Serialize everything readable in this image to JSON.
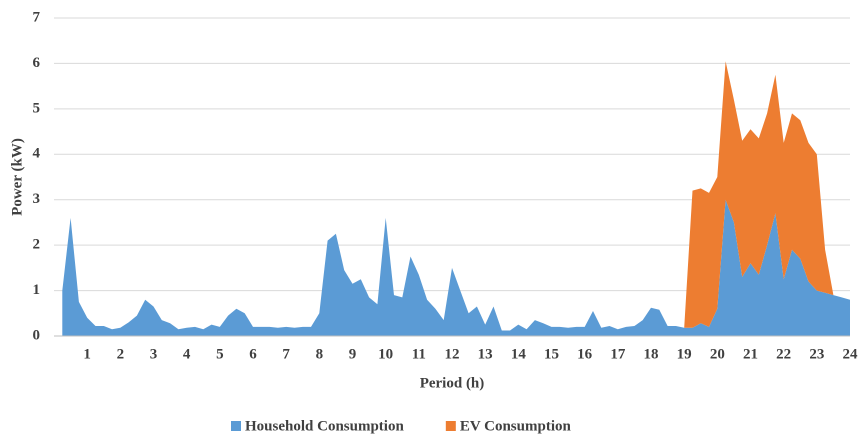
{
  "chart_data": {
    "type": "stacked_area",
    "x_label": "Period (h)",
    "y_label": "Power (kW)",
    "x": [
      0.25,
      0.5,
      0.75,
      1,
      1.25,
      1.5,
      1.75,
      2,
      2.25,
      2.5,
      2.75,
      3,
      3.25,
      3.5,
      3.75,
      4,
      4.25,
      4.5,
      4.75,
      5,
      5.25,
      5.5,
      5.75,
      6,
      6.25,
      6.5,
      6.75,
      7,
      7.25,
      7.5,
      7.75,
      8,
      8.25,
      8.5,
      8.75,
      9,
      9.25,
      9.5,
      9.75,
      10,
      10.25,
      10.5,
      10.75,
      11,
      11.25,
      11.5,
      11.75,
      12,
      12.25,
      12.5,
      12.75,
      13,
      13.25,
      13.5,
      13.75,
      14,
      14.25,
      14.5,
      14.75,
      15,
      15.25,
      15.5,
      15.75,
      16,
      16.25,
      16.5,
      16.75,
      17,
      17.25,
      17.5,
      17.75,
      18,
      18.25,
      18.5,
      18.75,
      19,
      19.25,
      19.5,
      19.75,
      20,
      20.25,
      20.5,
      20.75,
      21,
      21.25,
      21.5,
      21.75,
      22,
      22.25,
      22.5,
      22.75,
      23,
      23.25,
      23.5,
      23.75,
      24
    ],
    "series": [
      {
        "name": "Household Consumption",
        "color": "#5b9bd5",
        "values": [
          1.0,
          2.6,
          0.75,
          0.4,
          0.22,
          0.22,
          0.15,
          0.18,
          0.3,
          0.45,
          0.8,
          0.65,
          0.35,
          0.28,
          0.15,
          0.18,
          0.2,
          0.15,
          0.25,
          0.2,
          0.45,
          0.6,
          0.5,
          0.2,
          0.2,
          0.2,
          0.18,
          0.2,
          0.18,
          0.2,
          0.2,
          0.5,
          2.1,
          2.25,
          1.45,
          1.15,
          1.25,
          0.85,
          0.7,
          2.6,
          0.9,
          0.85,
          1.75,
          1.35,
          0.8,
          0.6,
          0.35,
          1.5,
          1.0,
          0.5,
          0.65,
          0.25,
          0.65,
          0.12,
          0.12,
          0.25,
          0.15,
          0.35,
          0.28,
          0.2,
          0.2,
          0.18,
          0.2,
          0.2,
          0.55,
          0.18,
          0.22,
          0.15,
          0.2,
          0.22,
          0.35,
          0.62,
          0.58,
          0.22,
          0.22,
          0.18,
          0.18,
          0.28,
          0.2,
          0.6,
          3.0,
          2.5,
          1.3,
          1.6,
          1.35,
          2.0,
          2.7,
          1.25,
          1.9,
          1.7,
          1.2,
          1.0,
          0.95,
          0.9,
          0.85,
          0.8
        ]
      },
      {
        "name": "EV Consumption",
        "color": "#ed7d31",
        "values": [
          null,
          null,
          null,
          null,
          null,
          null,
          null,
          null,
          null,
          null,
          null,
          null,
          null,
          null,
          null,
          null,
          null,
          null,
          null,
          null,
          null,
          null,
          null,
          null,
          null,
          null,
          null,
          null,
          null,
          null,
          null,
          null,
          null,
          null,
          null,
          null,
          null,
          null,
          null,
          null,
          null,
          null,
          null,
          null,
          null,
          null,
          null,
          null,
          null,
          null,
          null,
          null,
          null,
          null,
          null,
          null,
          null,
          null,
          null,
          null,
          null,
          null,
          null,
          null,
          null,
          null,
          null,
          null,
          null,
          null,
          null,
          null,
          null,
          null,
          null,
          0,
          3.02,
          2.97,
          2.95,
          2.9,
          3.05,
          2.7,
          3.0,
          2.95,
          3.0,
          2.9,
          3.05,
          3.0,
          3.0,
          3.05,
          3.05,
          3.0,
          0.95,
          0,
          null,
          null
        ]
      }
    ],
    "xlim": [
      0,
      24
    ],
    "xticks": [
      1,
      2,
      3,
      4,
      5,
      6,
      7,
      8,
      9,
      10,
      11,
      12,
      13,
      14,
      15,
      16,
      17,
      18,
      19,
      20,
      21,
      22,
      23,
      24
    ],
    "ylim": [
      0,
      7
    ],
    "yticks": [
      0,
      1,
      2,
      3,
      4,
      5,
      6,
      7
    ],
    "grid": true,
    "legend": "bottom"
  }
}
